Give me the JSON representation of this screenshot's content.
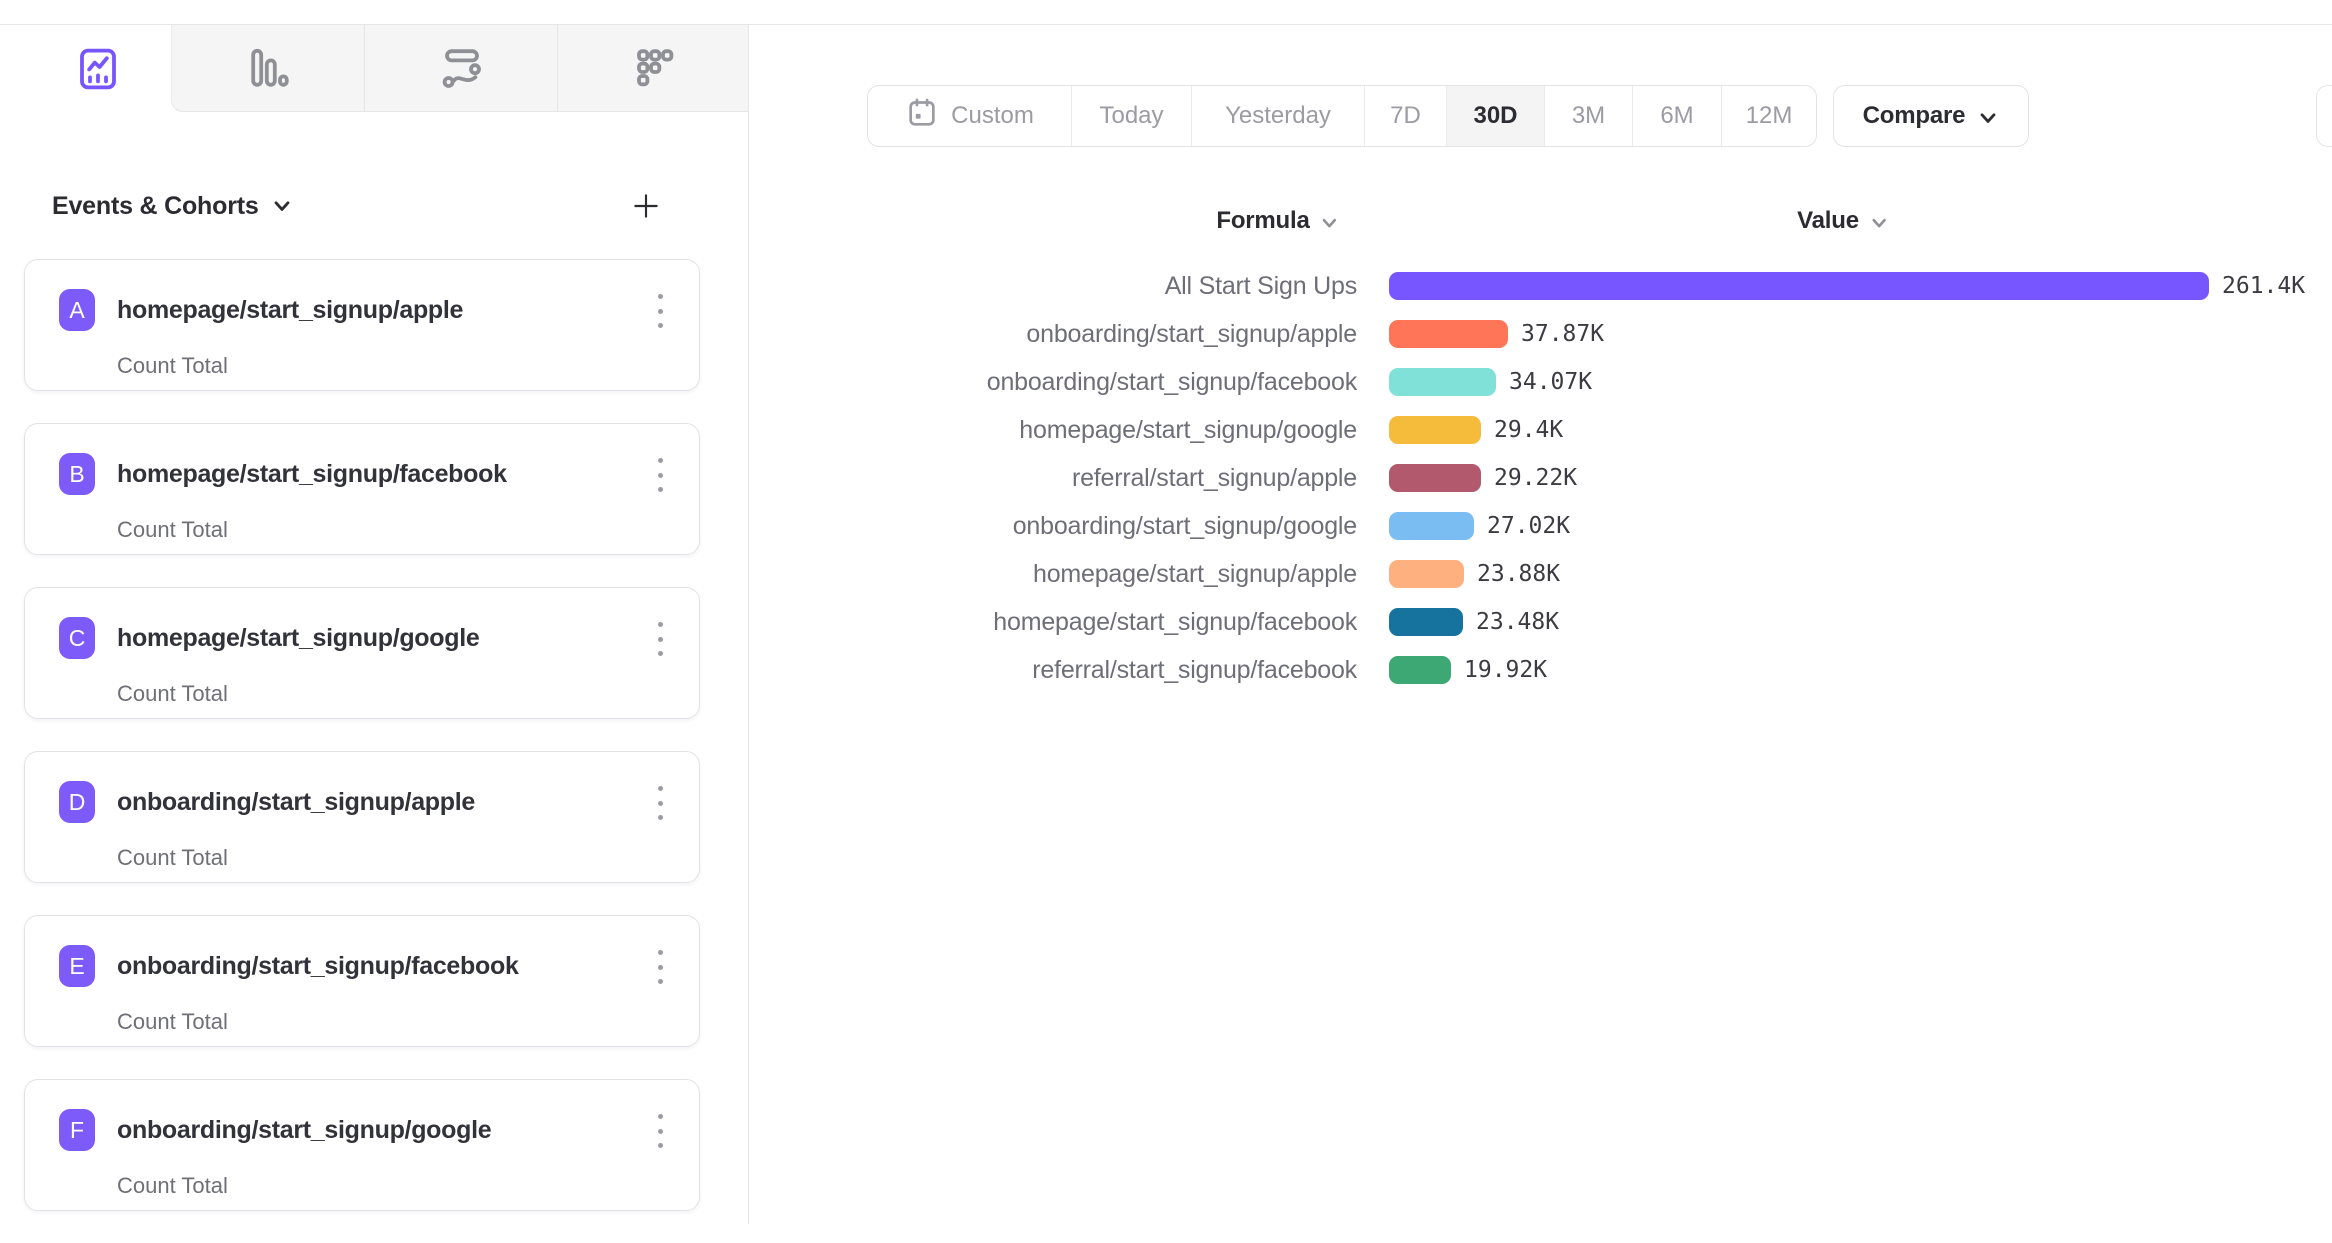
{
  "tabs": [
    {
      "id": "insights",
      "icon": "line-chart-icon",
      "active": true
    },
    {
      "id": "bar-report",
      "icon": "bar-chart-icon",
      "active": false
    },
    {
      "id": "flows",
      "icon": "flow-icon",
      "active": false
    },
    {
      "id": "retention",
      "icon": "retention-grid-icon",
      "active": false
    }
  ],
  "colors": {
    "accent_purple": "#7856ff",
    "badge_purple": "#7d5bfa",
    "border": "#e3e3e7",
    "text_dark": "#2b2b31",
    "text_gray": "#6e6e78",
    "text_muted": "#9b9ba3",
    "tab_gray_bg": "#f5f5f6",
    "active_segment_bg": "#f4f4f5"
  },
  "sidebar": {
    "header": {
      "title": "Events & Cohorts"
    },
    "events": [
      {
        "letter": "A",
        "name": "homepage/start_signup/apple",
        "metric": "Count Total"
      },
      {
        "letter": "B",
        "name": "homepage/start_signup/facebook",
        "metric": "Count Total"
      },
      {
        "letter": "C",
        "name": "homepage/start_signup/google",
        "metric": "Count Total"
      },
      {
        "letter": "D",
        "name": "onboarding/start_signup/apple",
        "metric": "Count Total"
      },
      {
        "letter": "E",
        "name": "onboarding/start_signup/facebook",
        "metric": "Count Total"
      },
      {
        "letter": "F",
        "name": "onboarding/start_signup/google",
        "metric": "Count Total"
      }
    ]
  },
  "toolbar": {
    "ranges": [
      {
        "label": "Custom",
        "icon": "calendar-icon"
      },
      {
        "label": "Today"
      },
      {
        "label": "Yesterday"
      },
      {
        "label": "7D"
      },
      {
        "label": "30D"
      },
      {
        "label": "3M"
      },
      {
        "label": "6M"
      },
      {
        "label": "12M"
      }
    ],
    "active_range": "30D",
    "compare_label": "Compare"
  },
  "chart_data": {
    "type": "bar",
    "orientation": "horizontal",
    "columns": {
      "formula": "Formula",
      "value": "Value"
    },
    "categories": [
      "All Start Sign Ups",
      "onboarding/start_signup/apple",
      "onboarding/start_signup/facebook",
      "homepage/start_signup/google",
      "referral/start_signup/apple",
      "onboarding/start_signup/google",
      "homepage/start_signup/apple",
      "homepage/start_signup/facebook",
      "referral/start_signup/facebook"
    ],
    "values": [
      261400,
      37870,
      34070,
      29400,
      29220,
      27020,
      23880,
      23480,
      19920
    ],
    "value_labels": [
      "261.4K",
      "37.87K",
      "34.07K",
      "29.4K",
      "29.22K",
      "27.02K",
      "23.88K",
      "23.48K",
      "19.92K"
    ],
    "bar_colors": [
      "#7856ff",
      "#ff7557",
      "#80e1d9",
      "#f5bc3c",
      "#b2596e",
      "#79bdf2",
      "#feb17e",
      "#16739e",
      "#3da874"
    ],
    "xlim": [
      0,
      261400
    ],
    "grid": false,
    "legend": false
  }
}
